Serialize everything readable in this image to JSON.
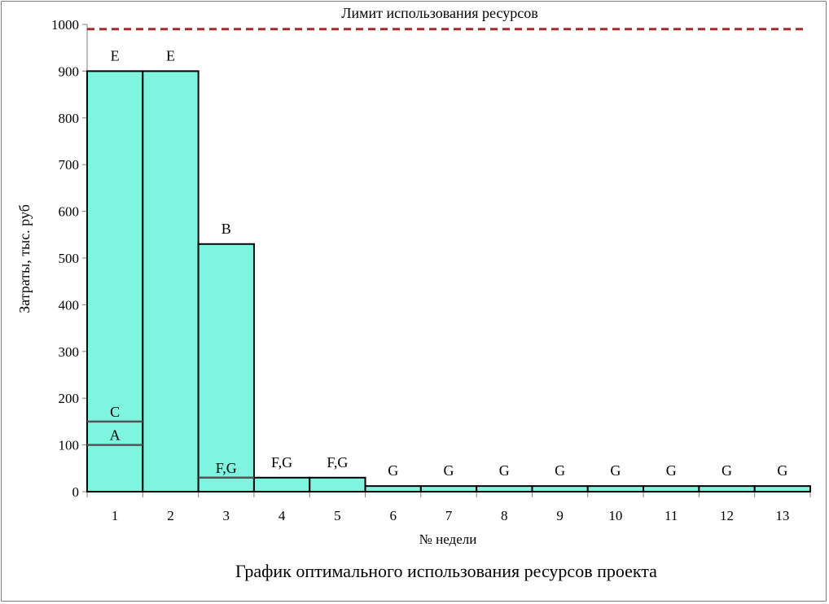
{
  "chart_data": {
    "type": "bar",
    "title": "График оптимального использования ресурсов проекта",
    "xlabel": "№ недели",
    "ylabel": "Затраты, тыс. руб",
    "ylim": [
      0,
      1000
    ],
    "yticks": [
      0,
      100,
      200,
      300,
      400,
      500,
      600,
      700,
      800,
      900,
      1000
    ],
    "categories": [
      "1",
      "2",
      "3",
      "4",
      "5",
      "6",
      "7",
      "8",
      "9",
      "10",
      "11",
      "12",
      "13"
    ],
    "values": [
      900,
      900,
      530,
      30,
      30,
      12,
      12,
      12,
      12,
      12,
      12,
      12,
      12
    ],
    "bar_labels": [
      "E",
      "E",
      "B",
      "F,G",
      "F,G",
      "G",
      "G",
      "G",
      "G",
      "G",
      "G",
      "G",
      "G"
    ],
    "segments": [
      {
        "week": "1",
        "value": 150,
        "label": "C"
      },
      {
        "week": "1",
        "value": 100,
        "label": "A"
      },
      {
        "week": "3",
        "value": 30,
        "label": "F,G"
      }
    ],
    "limit": {
      "value": 990,
      "label": "Лимит использования ресурсов",
      "color": "#a52a2a"
    },
    "bar_color": "#7ff5e0",
    "grid": false
  }
}
